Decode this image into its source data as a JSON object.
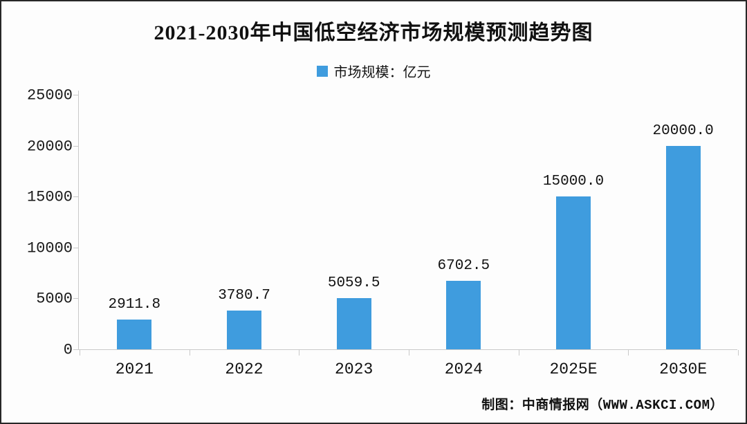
{
  "title": "2021-2030年中国低空经济市场规模预测趋势图",
  "legend": {
    "swatch_color": "#3f9cde",
    "label": "市场规模：亿元"
  },
  "footer": {
    "credit": "制图：中商情报网（WWW.ASKCI.COM）"
  },
  "chart_data": {
    "type": "bar",
    "title": "2021-2030年中国低空经济市场规模预测趋势图",
    "legend_entries": [
      "市场规模：亿元"
    ],
    "legend_position": "top-center",
    "unit": "亿元",
    "categories": [
      "2021",
      "2022",
      "2023",
      "2024",
      "2025E",
      "2030E"
    ],
    "values": [
      2911.8,
      3780.7,
      5059.5,
      6702.5,
      15000.0,
      20000.0
    ],
    "value_labels": [
      "2911.8",
      "3780.7",
      "5059.5",
      "6702.5",
      "15000.0",
      "20000.0"
    ],
    "ylim": [
      0,
      25000
    ],
    "yticks": [
      0,
      5000,
      10000,
      15000,
      20000,
      25000
    ],
    "grid": false,
    "bar_color": "#3f9cde",
    "axis_color": "#c9c9c9",
    "text_color": "#111111"
  }
}
